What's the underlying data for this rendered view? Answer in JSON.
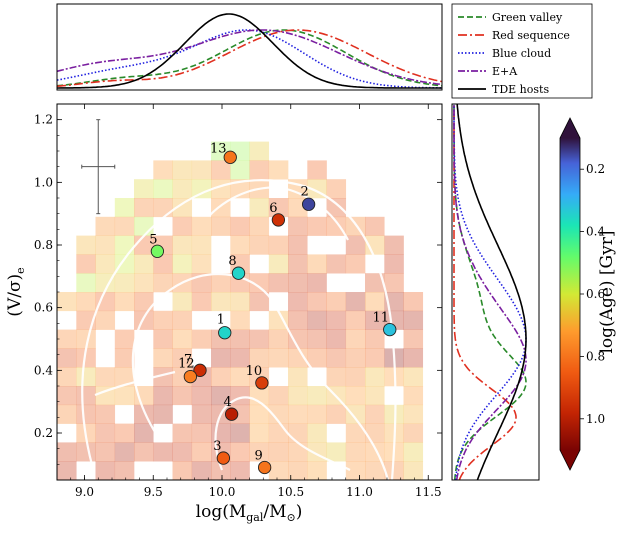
{
  "chart_data": [
    {
      "type": "scatter",
      "name": "main-scatter",
      "xlabel_main": "log(M",
      "xlabel_sub": "gal",
      "xlabel_mid": "/M",
      "xlabel_sub2": "⊙",
      "xlabel_end": ")",
      "ylabel_main": "(V/σ)",
      "ylabel_sub": "e",
      "xlim": [
        8.8,
        11.6
      ],
      "ylim": [
        0.05,
        1.25
      ],
      "xticks": [
        "9.0",
        "9.5",
        "10.0",
        "10.5",
        "11.0",
        "11.5"
      ],
      "xtick_values": [
        9.0,
        9.5,
        10.0,
        10.5,
        11.0,
        11.5
      ],
      "yticks": [
        "0.2",
        "0.4",
        "0.6",
        "0.8",
        "1.0",
        "1.2"
      ],
      "ytick_values": [
        0.2,
        0.4,
        0.6,
        0.8,
        1.0,
        1.2
      ],
      "error_bar": {
        "x": 9.1,
        "y": 1.05,
        "xerr": 0.12,
        "yerr": 0.15
      },
      "points": [
        {
          "label": "1",
          "x": 10.02,
          "y": 0.52,
          "age": 0.35
        },
        {
          "label": "2",
          "x": 10.63,
          "y": 0.93,
          "age": 0.15
        },
        {
          "label": "3",
          "x": 10.01,
          "y": 0.12,
          "age": 0.85
        },
        {
          "label": "4",
          "x": 10.07,
          "y": 0.26,
          "age": 1.0
        },
        {
          "label": "5",
          "x": 9.53,
          "y": 0.78,
          "age": 0.5
        },
        {
          "label": "6",
          "x": 10.41,
          "y": 0.88,
          "age": 0.95
        },
        {
          "label": "7",
          "x": 9.84,
          "y": 0.4,
          "age": 0.96
        },
        {
          "label": "8",
          "x": 10.12,
          "y": 0.71,
          "age": 0.35
        },
        {
          "label": "9",
          "x": 10.31,
          "y": 0.09,
          "age": 0.8
        },
        {
          "label": "10",
          "x": 10.29,
          "y": 0.36,
          "age": 0.92
        },
        {
          "label": "11",
          "x": 11.22,
          "y": 0.53,
          "age": 0.32
        },
        {
          "label": "12",
          "x": 9.77,
          "y": 0.38,
          "age": 0.78
        },
        {
          "label": "13",
          "x": 10.06,
          "y": 1.08,
          "age": 0.8
        }
      ]
    },
    {
      "type": "line",
      "name": "top-marginal",
      "series": [
        {
          "name": "Green valley",
          "color": "#2a8a2a",
          "dash": "6,3",
          "centers": [
            10.45,
            9.3
          ],
          "sigmas": [
            0.45,
            0.3
          ],
          "weights": [
            1.0,
            0.15
          ]
        },
        {
          "name": "Red sequence",
          "color": "#e03020",
          "dash": "9,3,2,3",
          "centers": [
            10.55,
            9.2
          ],
          "sigmas": [
            0.5,
            0.25
          ],
          "weights": [
            1.0,
            0.1
          ]
        },
        {
          "name": "Blue cloud",
          "color": "#2020e0",
          "dash": "1.5,2",
          "centers": [
            10.2,
            9.3
          ],
          "sigmas": [
            0.4,
            0.4
          ],
          "weights": [
            1.0,
            0.3
          ]
        },
        {
          "name": "E+A",
          "color": "#7a1fa0",
          "dash": "7,2,2,2",
          "centers": [
            10.3,
            9.1
          ],
          "sigmas": [
            0.55,
            0.4
          ],
          "weights": [
            1.0,
            0.35
          ]
        },
        {
          "name": "TDE hosts",
          "color": "#000000",
          "dash": "",
          "centers": [
            10.05
          ],
          "sigmas": [
            0.32
          ],
          "weights": [
            1.0
          ]
        }
      ]
    },
    {
      "type": "line",
      "name": "right-marginal",
      "series": [
        {
          "name": "Green valley",
          "color": "#2a8a2a",
          "dash": "6,3",
          "centers": [
            0.35,
            0.6
          ],
          "sigmas": [
            0.1,
            0.15
          ],
          "weights": [
            1.0,
            0.4
          ]
        },
        {
          "name": "Red sequence",
          "color": "#e03020",
          "dash": "9,3,2,3",
          "centers": [
            0.25
          ],
          "sigmas": [
            0.09
          ],
          "weights": [
            1.0
          ]
        },
        {
          "name": "Blue cloud",
          "color": "#2020e0",
          "dash": "1.5,2",
          "centers": [
            0.45,
            0.65
          ],
          "sigmas": [
            0.15,
            0.15
          ],
          "weights": [
            1.0,
            0.5
          ]
        },
        {
          "name": "E+A",
          "color": "#7a1fa0",
          "dash": "7,2,2,2",
          "centers": [
            0.4,
            0.6
          ],
          "sigmas": [
            0.14,
            0.15
          ],
          "weights": [
            1.0,
            0.4
          ]
        },
        {
          "name": "TDE hosts",
          "color": "#000000",
          "dash": "",
          "centers": [
            0.5
          ],
          "sigmas": [
            0.3
          ],
          "weights": [
            1.0
          ]
        }
      ]
    },
    {
      "type": "heatmap",
      "name": "colorbar",
      "label_main": "log(Age) [Gyr]",
      "ticks": [
        "0.2",
        "0.4",
        "0.6",
        "0.8",
        "1.0"
      ],
      "tick_values": [
        0.2,
        0.4,
        0.6,
        0.8,
        1.0
      ],
      "range": [
        0.1,
        1.1
      ]
    }
  ],
  "legend": {
    "position": "top-right",
    "entries": [
      "Green valley",
      "Red sequence",
      "Blue cloud",
      "E+A",
      "TDE hosts"
    ]
  }
}
